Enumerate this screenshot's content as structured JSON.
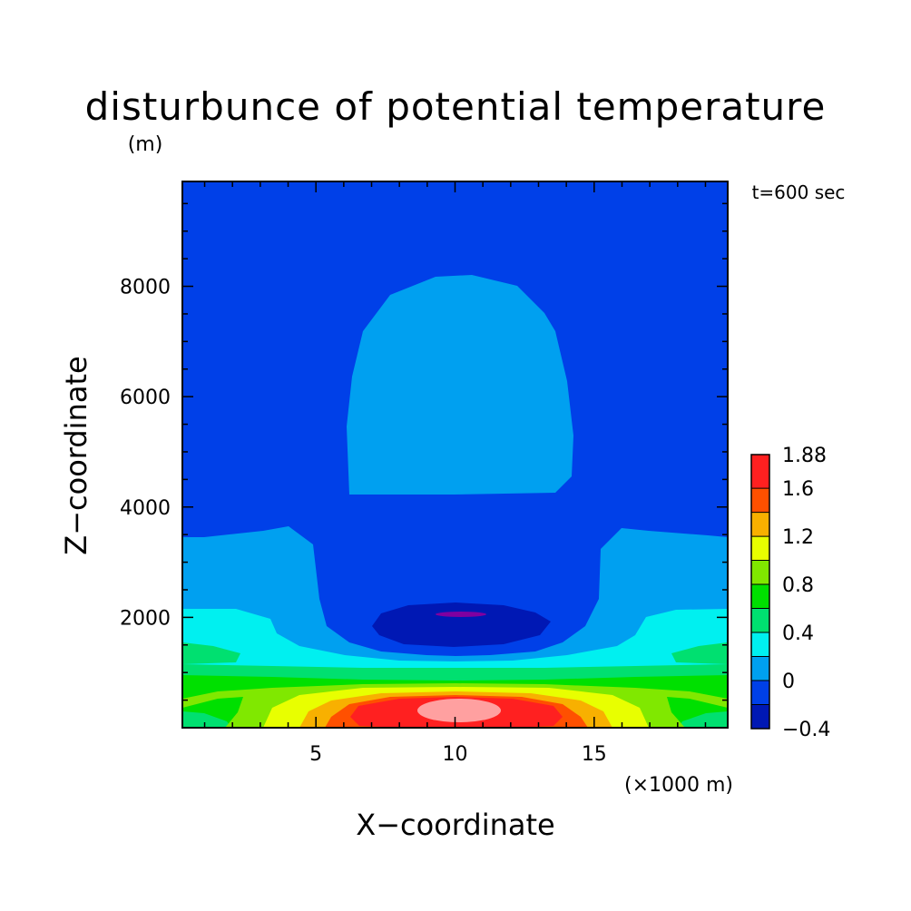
{
  "chart_data": {
    "type": "heatmap",
    "title": "disturbunce of potential temperature",
    "unit_label": "(m)",
    "time_label": "t=600 sec",
    "xlabel": "X−coordinate",
    "x_unit": "(×1000 m)",
    "ylabel": "Z−coordinate",
    "xlim": [
      0.2,
      19.8
    ],
    "ylim": [
      0,
      9900
    ],
    "x_ticks": [
      5,
      10,
      15
    ],
    "x_tick_labels": [
      "5",
      "10",
      "15"
    ],
    "y_ticks": [
      2000,
      4000,
      6000,
      8000
    ],
    "y_tick_labels": [
      "2000",
      "4000",
      "6000",
      "8000"
    ],
    "colorbar": {
      "levels": [
        -0.4,
        -0.2,
        0,
        0.2,
        0.4,
        0.6,
        0.8,
        1.0,
        1.2,
        1.4,
        1.6,
        1.88
      ],
      "colors": [
        "#0018b4",
        "#0040e8",
        "#00a0f0",
        "#00f0f0",
        "#00e070",
        "#00e000",
        "#80e800",
        "#e8ff00",
        "#f8b000",
        "#ff5000",
        "#ff2020",
        "#ffa0a0"
      ],
      "tick_labels": [
        "1.88",
        "1.6",
        "1.2",
        "0.8",
        "0.4",
        "0",
        "−0.4"
      ],
      "tick_values": [
        1.88,
        1.6,
        1.2,
        0.8,
        0.4,
        0,
        -0.4
      ]
    },
    "field_description_values": {
      "background": -0.2,
      "upper_bubble_x": [
        6.2,
        14.3
      ],
      "upper_bubble_z": [
        4300,
        8200
      ],
      "cold_core_center": [
        10,
        2100
      ],
      "warm_core_center": [
        10,
        350
      ],
      "max_value": 1.88,
      "min_value": -0.4
    }
  }
}
